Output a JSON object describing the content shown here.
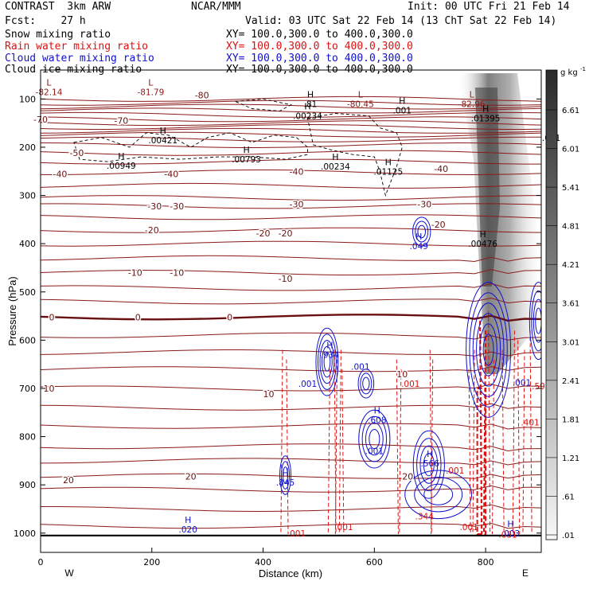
{
  "header": {
    "left_line1": "CONTRAST  3km ARW",
    "left_line2": "Fcst:    27 h",
    "center": "NCAR/MMM",
    "init": "Init: 00 UTC Fri 21 Feb 14",
    "valid": "Valid: 03 UTC Sat 22 Feb 14 (13 ChT Sat 22 Feb 14)",
    "fields": [
      {
        "label": "Snow mixing ratio",
        "xy": "XY= 100.0,300.0 to 400.0,300.0",
        "color": "#000000"
      },
      {
        "label": "Rain water mixing ratio",
        "xy": "XY= 100.0,300.0 to 400.0,300.0",
        "color": "#e01010"
      },
      {
        "label": "Cloud water mixing ratio",
        "xy": "XY= 100.0,300.0 to 400.0,300.0",
        "color": "#1010d0"
      },
      {
        "label": "Cloud ice mixing ratio",
        "xy": "XY= 100.0,300.0 to 400.0,300.0",
        "color": "#000000"
      }
    ]
  },
  "chart_data": {
    "type": "cross-section",
    "xlabel": "Distance (km)",
    "ylabel": "Pressure (hPa)",
    "xlim": [
      0,
      900
    ],
    "ylim": [
      1040,
      40
    ],
    "x_ticks": [
      0,
      200,
      400,
      600,
      800
    ],
    "y_ticks": [
      100,
      200,
      300,
      400,
      500,
      600,
      700,
      800,
      900,
      1000
    ],
    "x_end_labels": {
      "left": "W",
      "right": "E"
    },
    "colorbar": {
      "unit": "g kg",
      "unit_sup": "-1",
      "labels": [
        "6.61",
        "6.01",
        "5.41",
        "4.81",
        "4.21",
        "3.61",
        "3.01",
        "2.41",
        "1.81",
        "1.21",
        ".61",
        ".01"
      ]
    },
    "temperature_labels": [
      {
        "text": "-80",
        "x": 290,
        "p": 92
      },
      {
        "text": "-70",
        "x": 0,
        "p": 142
      },
      {
        "text": "-70",
        "x": 145,
        "p": 145
      },
      {
        "text": "-50",
        "x": 65,
        "p": 212
      },
      {
        "text": "-40",
        "x": 35,
        "p": 255
      },
      {
        "text": "-40",
        "x": 235,
        "p": 255
      },
      {
        "text": "-40",
        "x": 460,
        "p": 250
      },
      {
        "text": "-40",
        "x": 720,
        "p": 245
      },
      {
        "text": "-30",
        "x": 205,
        "p": 322
      },
      {
        "text": "-30",
        "x": 245,
        "p": 322
      },
      {
        "text": "-30",
        "x": 460,
        "p": 318
      },
      {
        "text": "-30",
        "x": 690,
        "p": 318
      },
      {
        "text": "-20",
        "x": 200,
        "p": 372
      },
      {
        "text": "-20",
        "x": 400,
        "p": 378
      },
      {
        "text": "-20",
        "x": 440,
        "p": 378
      },
      {
        "text": "-20",
        "x": 715,
        "p": 360
      },
      {
        "text": "-10",
        "x": 170,
        "p": 460
      },
      {
        "text": "-10",
        "x": 245,
        "p": 460
      },
      {
        "text": "-10",
        "x": 440,
        "p": 472
      },
      {
        "text": "0",
        "x": 20,
        "p": 552
      },
      {
        "text": "0",
        "x": 175,
        "p": 552
      },
      {
        "text": "0",
        "x": 340,
        "p": 552
      },
      {
        "text": "10",
        "x": 15,
        "p": 700
      },
      {
        "text": "10",
        "x": 410,
        "p": 712
      },
      {
        "text": "10",
        "x": 650,
        "p": 670
      },
      {
        "text": "20",
        "x": 50,
        "p": 890
      },
      {
        "text": "20",
        "x": 270,
        "p": 882
      },
      {
        "text": "20",
        "x": 660,
        "p": 882
      }
    ],
    "extrema": [
      {
        "mark": "L",
        "value": "-82.14",
        "x": 15,
        "p": 85,
        "color": "#8b1a1a"
      },
      {
        "mark": "L",
        "value": "-81.79",
        "x": 198,
        "p": 85,
        "color": "#8b1a1a"
      },
      {
        "mark": "L",
        "value": "-80.45",
        "x": 575,
        "p": 110,
        "color": "#8b1a1a"
      },
      {
        "mark": "L",
        "value": "-82.96",
        "x": 775,
        "p": 110,
        "color": "#8b1a1a"
      },
      {
        "mark": "H",
        "value": ".81",
        "x": 485,
        "p": 110,
        "color": "#000000"
      },
      {
        "mark": "H",
        "value": ".00234",
        "x": 480,
        "p": 135,
        "color": "#000000"
      },
      {
        "mark": "H",
        "value": ".001",
        "x": 650,
        "p": 123,
        "color": "#000000"
      },
      {
        "mark": "H",
        "value": ".01395",
        "x": 800,
        "p": 140,
        "color": "#000000"
      },
      {
        "mark": "H",
        "value": ".00421",
        "x": 220,
        "p": 185,
        "color": "#000000"
      },
      {
        "mark": "H",
        "value": ".00949",
        "x": 145,
        "p": 238,
        "color": "#000000"
      },
      {
        "mark": "H",
        "value": ".00793",
        "x": 370,
        "p": 225,
        "color": "#000000"
      },
      {
        "mark": "H",
        "value": ".00234",
        "x": 530,
        "p": 240,
        "color": "#000000"
      },
      {
        "mark": "H",
        "value": ".01125",
        "x": 625,
        "p": 250,
        "color": "#000000"
      },
      {
        "mark": "H",
        "value": ".001",
        "x": 918,
        "p": 180,
        "color": "#000000"
      },
      {
        "mark": "H",
        "value": ".049",
        "x": 680,
        "p": 405,
        "color": "#1010d0"
      },
      {
        "mark": "H",
        "value": ".00476",
        "x": 795,
        "p": 400,
        "color": "#000000"
      },
      {
        "mark": "H",
        "value": ".934",
        "x": 520,
        "p": 630,
        "color": "#1010d0"
      },
      {
        "mark": "H",
        "value": ".608",
        "x": 605,
        "p": 765,
        "color": "#1010d0"
      },
      {
        "mark": "H",
        "value": ".566",
        "x": 700,
        "p": 855,
        "color": "#1010d0"
      },
      {
        "mark": "H",
        "value": ".845",
        "x": 440,
        "p": 895,
        "color": "#1010d0"
      },
      {
        "mark": "H",
        "value": ".020",
        "x": 265,
        "p": 992,
        "color": "#1010d0"
      },
      {
        "mark": "H",
        "value": ".003",
        "x": 845,
        "p": 1000,
        "color": "#1010d0"
      }
    ],
    "small_labels": [
      {
        "text": ".001",
        "x": 575,
        "p": 655,
        "color": "#1010d0"
      },
      {
        "text": ".001",
        "x": 480,
        "p": 690,
        "color": "#1010d0"
      },
      {
        "text": ".001",
        "x": 865,
        "p": 688,
        "color": "#1010d0"
      },
      {
        "text": ".001",
        "x": 665,
        "p": 690,
        "color": "#e01010"
      },
      {
        "text": ".001",
        "x": 600,
        "p": 830,
        "color": "#1010d0"
      },
      {
        "text": ".001",
        "x": 745,
        "p": 870,
        "color": "#e01010"
      },
      {
        "text": ".344",
        "x": 690,
        "p": 965,
        "color": "#e01010"
      },
      {
        "text": ".001",
        "x": 460,
        "p": 1000,
        "color": "#e01010"
      },
      {
        "text": ".001",
        "x": 545,
        "p": 987,
        "color": "#e01010"
      },
      {
        "text": ".001",
        "x": 770,
        "p": 987,
        "color": "#e01010"
      },
      {
        "text": ".031",
        "x": 840,
        "p": 1003,
        "color": "#e01010"
      },
      {
        "text": ".401",
        "x": 880,
        "p": 770,
        "color": "#e01010"
      },
      {
        "text": ".59",
        "x": 895,
        "p": 695,
        "color": "#e01010"
      }
    ]
  }
}
